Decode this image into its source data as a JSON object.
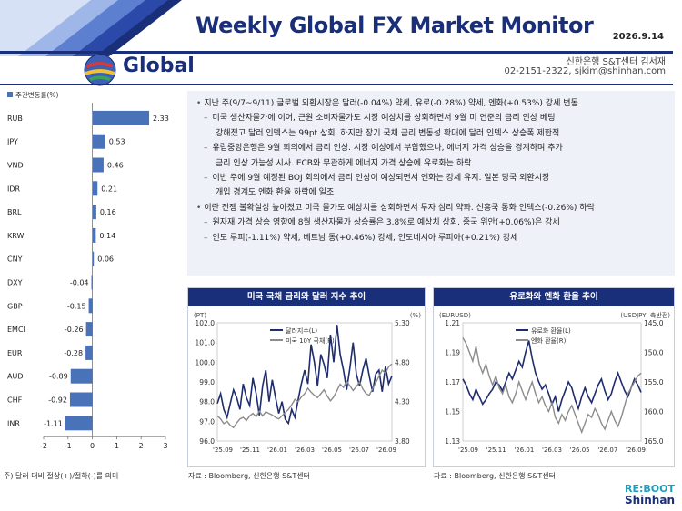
{
  "header": {
    "title": "Weekly Global FX Market Monitor",
    "date": "2026.9.14",
    "section": "Global",
    "author_line1": "신한은행 S&T센터 김서재",
    "author_line2": "02-2151-2322, sjkim@shinhan.com"
  },
  "summary": {
    "lines": [
      {
        "kind": "main",
        "text": "지난 주(9/7~9/11) 글로벌 외환시장은 달러(-0.04%) 약세, 유로(-0.28%) 약세, 엔화(+0.53%) 강세 변동"
      },
      {
        "kind": "sub",
        "text": "미국 생산자물가에 이어, 근원 소비자물가도 시장 예상치를 상회하면서 9월 미 연준의 금리 인상 베팅"
      },
      {
        "kind": "cont",
        "text": "강해졌고 달러 인덱스는 99pt 상회. 하지만 장기 국채 금리 변동성 확대에 달러 인덱스 상승폭 제한적"
      },
      {
        "kind": "sub",
        "text": "유럽중앙은행은 9월 회의에서 금리 인상. 시장 예상에서 부합했으나, 에너지 가격 상승을 경계하며 추가"
      },
      {
        "kind": "cont",
        "text": "금리 인상 가능성 시사. ECB와 무관하게 에너지 가격 상승에 유로화는 하락"
      },
      {
        "kind": "sub",
        "text": "이번 주에 9월 예정된 BOJ 회의에서 금리 인상이 예상되면서 엔화는 강세 유지. 일본 당국 외환시장"
      },
      {
        "kind": "cont",
        "text": "개입 경계도 엔화 환율 하락에 일조"
      },
      {
        "kind": "main",
        "text": "이란 전쟁 불확실성 높아졌고 미국 물가도 예상치를 상회하면서 투자 심리 약화. 신흥국 통화 인덱스(-0.26%) 하락"
      },
      {
        "kind": "sub",
        "text": "원자재 가격 상승 영향에 8월 생산자물가 상승률은 3.8%로 예상치 상회. 중국 위안(+0.06%)은 강세"
      },
      {
        "kind": "sub",
        "text": "인도 루피(-1.11%) 약세, 베트남 동(+0.46%) 강세, 인도네시아 루피아(+0.21%) 강세"
      }
    ]
  },
  "left_note": "주) 달러 대비 절상(+)/절하(-)를 의미",
  "chart_data": [
    {
      "type": "bar",
      "orientation": "horizontal",
      "legend": "주간변동률(%)",
      "categories": [
        "RUB",
        "JPY",
        "VND",
        "IDR",
        "BRL",
        "KRW",
        "CNY",
        "DXY",
        "GBP",
        "EMCI",
        "EUR",
        "AUD",
        "CHF",
        "INR"
      ],
      "values": [
        2.33,
        0.53,
        0.46,
        0.21,
        0.16,
        0.14,
        0.06,
        -0.04,
        -0.15,
        -0.26,
        -0.28,
        -0.89,
        -0.92,
        -1.11
      ],
      "xlim": [
        -2,
        3
      ],
      "xticks": [
        "-2",
        "-1",
        "0",
        "1",
        "2",
        "3"
      ],
      "bar_color": "#4a72b8"
    },
    {
      "type": "line",
      "title": "미국 국채 금리와 달러 지수 추이",
      "left_unit": "(PT)",
      "right_unit": "(%)",
      "left_ylim": [
        96.0,
        102.0
      ],
      "right_ylim": [
        3.8,
        5.3
      ],
      "left_ticks": [
        "102.0",
        "101.0",
        "100.0",
        "99.0",
        "98.0",
        "97.0",
        "96.0"
      ],
      "right_ticks": [
        "5.30",
        "4.80",
        "4.30",
        "3.80"
      ],
      "x_ticks": [
        "'25.09",
        "'25.11",
        "'26.01",
        "'26.03",
        "'26.05",
        "'26.07",
        "'26.09"
      ],
      "series": [
        {
          "name": "달러지수(L)",
          "axis": "left",
          "color": "#1f2d6e",
          "values": [
            97.9,
            98.4,
            97.6,
            97.2,
            97.9,
            98.6,
            98.2,
            97.6,
            98.9,
            98.2,
            97.8,
            99.2,
            98.4,
            97.3,
            98.8,
            99.6,
            98.0,
            99.1,
            98.2,
            97.4,
            98.0,
            97.1,
            96.9,
            97.6,
            97.2,
            98.1,
            98.9,
            99.6,
            98.9,
            100.9,
            100.0,
            98.8,
            100.4,
            99.9,
            99.2,
            101.4,
            100.0,
            101.9,
            100.4,
            99.6,
            98.6,
            99.7,
            101.0,
            99.4,
            98.8,
            99.6,
            100.2,
            99.3,
            98.5,
            99.4,
            99.6,
            98.5,
            99.8,
            98.9,
            99.3
          ]
        },
        {
          "name": "미국 10Y 국채(R)",
          "axis": "right",
          "color": "#8c8c8c",
          "values": [
            4.12,
            4.08,
            4.02,
            4.05,
            4.0,
            3.97,
            4.03,
            4.08,
            4.1,
            4.06,
            4.12,
            4.15,
            4.11,
            4.18,
            4.12,
            4.17,
            4.15,
            4.13,
            4.1,
            4.08,
            4.12,
            4.16,
            4.2,
            4.26,
            4.33,
            4.3,
            4.36,
            4.4,
            4.47,
            4.42,
            4.38,
            4.35,
            4.4,
            4.45,
            4.37,
            4.31,
            4.36,
            4.44,
            4.52,
            4.48,
            4.56,
            4.5,
            4.44,
            4.49,
            4.55,
            4.46,
            4.4,
            4.38,
            4.46,
            4.54,
            4.62,
            4.7,
            4.66,
            4.74,
            4.78
          ]
        }
      ],
      "source": "자료 : Bloomberg, 신한은행 S&T센터"
    },
    {
      "type": "line",
      "title": "유로화와 엔화 환율 추이",
      "left_unit": "(EURUSD)",
      "right_unit": "(USDJPY, 축반전)",
      "left_ylim": [
        1.13,
        1.21
      ],
      "right_ylim": [
        145.0,
        165.0
      ],
      "right_inverted": true,
      "left_ticks": [
        "1.21",
        "1.19",
        "1.17",
        "1.15",
        "1.13"
      ],
      "right_ticks": [
        "145.0",
        "150.0",
        "155.0",
        "160.0",
        "165.0"
      ],
      "x_ticks": [
        "'25.09",
        "'25.11",
        "'26.01",
        "'26.03",
        "'26.05",
        "'26.07",
        "'26.09"
      ],
      "series": [
        {
          "name": "유로화 환율(L)",
          "axis": "left",
          "color": "#1f2d6e",
          "values": [
            1.172,
            1.168,
            1.162,
            1.158,
            1.165,
            1.16,
            1.155,
            1.158,
            1.162,
            1.165,
            1.17,
            1.168,
            1.164,
            1.17,
            1.176,
            1.172,
            1.178,
            1.184,
            1.18,
            1.19,
            1.198,
            1.186,
            1.176,
            1.17,
            1.165,
            1.168,
            1.162,
            1.155,
            1.16,
            1.15,
            1.158,
            1.164,
            1.17,
            1.166,
            1.158,
            1.152,
            1.16,
            1.166,
            1.16,
            1.156,
            1.162,
            1.168,
            1.172,
            1.164,
            1.158,
            1.162,
            1.17,
            1.176,
            1.17,
            1.164,
            1.16,
            1.166,
            1.172,
            1.168,
            1.163
          ]
        },
        {
          "name": "엔화 환율(R)",
          "axis": "right",
          "color": "#8c8c8c",
          "values": [
            147.5,
            148.5,
            150.0,
            151.5,
            149.0,
            152.0,
            153.5,
            152.0,
            154.0,
            155.5,
            154.0,
            156.0,
            157.0,
            155.5,
            157.5,
            158.5,
            157.0,
            155.0,
            156.5,
            158.0,
            156.5,
            155.0,
            157.0,
            158.5,
            157.5,
            159.0,
            160.0,
            158.5,
            161.0,
            162.0,
            160.5,
            161.5,
            160.0,
            159.0,
            160.5,
            162.0,
            163.5,
            162.0,
            160.5,
            161.0,
            159.5,
            160.5,
            162.0,
            163.0,
            161.5,
            160.0,
            161.5,
            162.5,
            161.0,
            159.0,
            157.0,
            156.0,
            155.0,
            154.0,
            153.5
          ]
        }
      ],
      "source": "자료 : Bloomberg, 신한은행 S&T센터"
    }
  ],
  "logo": {
    "line1": "RE:BOOT",
    "line2": "Shinhan"
  }
}
